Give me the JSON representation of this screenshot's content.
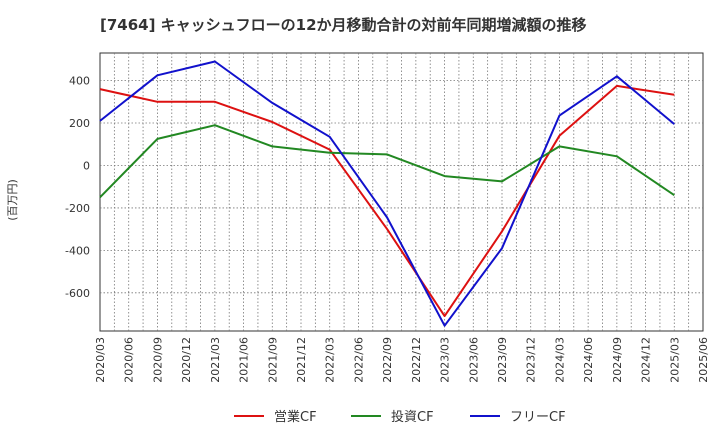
{
  "chart_data": {
    "type": "line",
    "title": "[7464]  キャッシュフローの12か月移動合計の対前年同期増減額の推移",
    "ylabel": "(百万円)",
    "xlabel": "",
    "ylim": [
      -780,
      530
    ],
    "yticks": [
      400,
      200,
      0,
      -200,
      -400,
      -600
    ],
    "categories": [
      "2020/03",
      "2020/06",
      "2020/09",
      "2020/12",
      "2021/03",
      "2021/06",
      "2021/09",
      "2021/12",
      "2022/03",
      "2022/06",
      "2022/09",
      "2022/12",
      "2023/03",
      "2023/06",
      "2023/09",
      "2023/12",
      "2024/03",
      "2024/06",
      "2024/09",
      "2024/12",
      "2025/03",
      "2025/06"
    ],
    "series": [
      {
        "name": "営業CF",
        "color": "#dd1111",
        "points": [
          [
            "2020/03",
            360
          ],
          [
            "2020/09",
            300
          ],
          [
            "2021/03",
            300
          ],
          [
            "2021/09",
            205
          ],
          [
            "2022/03",
            75
          ],
          [
            "2022/09",
            -300
          ],
          [
            "2023/03",
            -710
          ],
          [
            "2023/09",
            -310
          ],
          [
            "2024/03",
            140
          ],
          [
            "2024/09",
            375
          ],
          [
            "2025/03",
            333
          ]
        ]
      },
      {
        "name": "投資CF",
        "color": "#228822",
        "points": [
          [
            "2020/03",
            -150
          ],
          [
            "2020/09",
            125
          ],
          [
            "2021/03",
            190
          ],
          [
            "2021/09",
            90
          ],
          [
            "2022/03",
            60
          ],
          [
            "2022/09",
            52
          ],
          [
            "2023/03",
            -50
          ],
          [
            "2023/09",
            -75
          ],
          [
            "2024/03",
            90
          ],
          [
            "2024/09",
            43
          ],
          [
            "2025/03",
            -140
          ]
        ]
      },
      {
        "name": "フリーCF",
        "color": "#1111cc",
        "points": [
          [
            "2020/03",
            210
          ],
          [
            "2020/09",
            425
          ],
          [
            "2021/03",
            490
          ],
          [
            "2021/09",
            295
          ],
          [
            "2022/03",
            135
          ],
          [
            "2022/09",
            -245
          ],
          [
            "2023/03",
            -755
          ],
          [
            "2023/09",
            -390
          ],
          [
            "2024/03",
            235
          ],
          [
            "2024/09",
            420
          ],
          [
            "2025/03",
            195
          ]
        ]
      }
    ],
    "legend_position": "bottom"
  }
}
